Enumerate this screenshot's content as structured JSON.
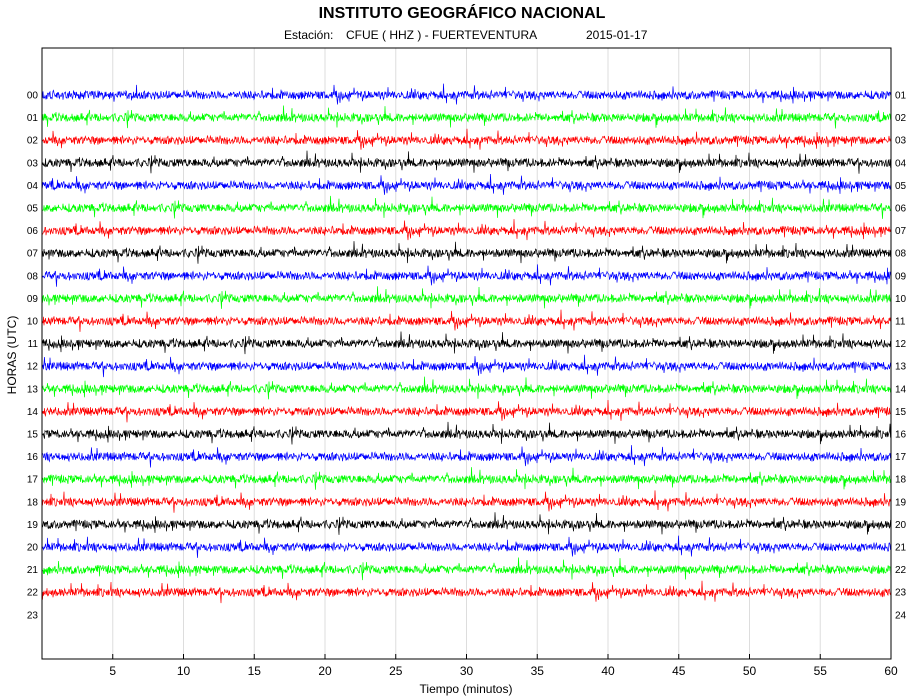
{
  "chart_data": {
    "type": "line",
    "title": "INSTITUTO GEOGRÁFICO NACIONAL",
    "subtitle": {
      "station_prefix": "Estación:",
      "station": "CFUE ( HHZ ) - FUERTEVENTURA",
      "date": "2015-01-17"
    },
    "xlabel": "Tiempo (minutos)",
    "ylabel": "HORAS (UTC)",
    "xlim": [
      0,
      60
    ],
    "x_ticks": [
      5,
      10,
      15,
      20,
      25,
      30,
      35,
      40,
      45,
      50,
      55,
      60
    ],
    "grid": "vertical",
    "left_hour_labels": [
      "00",
      "01",
      "02",
      "03",
      "04",
      "05",
      "06",
      "07",
      "08",
      "09",
      "10",
      "11",
      "12",
      "13",
      "14",
      "15",
      "16",
      "17",
      "18",
      "19",
      "20",
      "21",
      "22",
      "23"
    ],
    "right_hour_labels": [
      "01",
      "02",
      "03",
      "04",
      "05",
      "06",
      "07",
      "08",
      "09",
      "10",
      "11",
      "12",
      "13",
      "14",
      "15",
      "16",
      "17",
      "18",
      "19",
      "20",
      "21",
      "22",
      "23",
      "24"
    ],
    "traces_recorded": 23,
    "trace_color_cycle": [
      "#0000ff",
      "#00ff00",
      "#ff0000",
      "#000000"
    ]
  }
}
